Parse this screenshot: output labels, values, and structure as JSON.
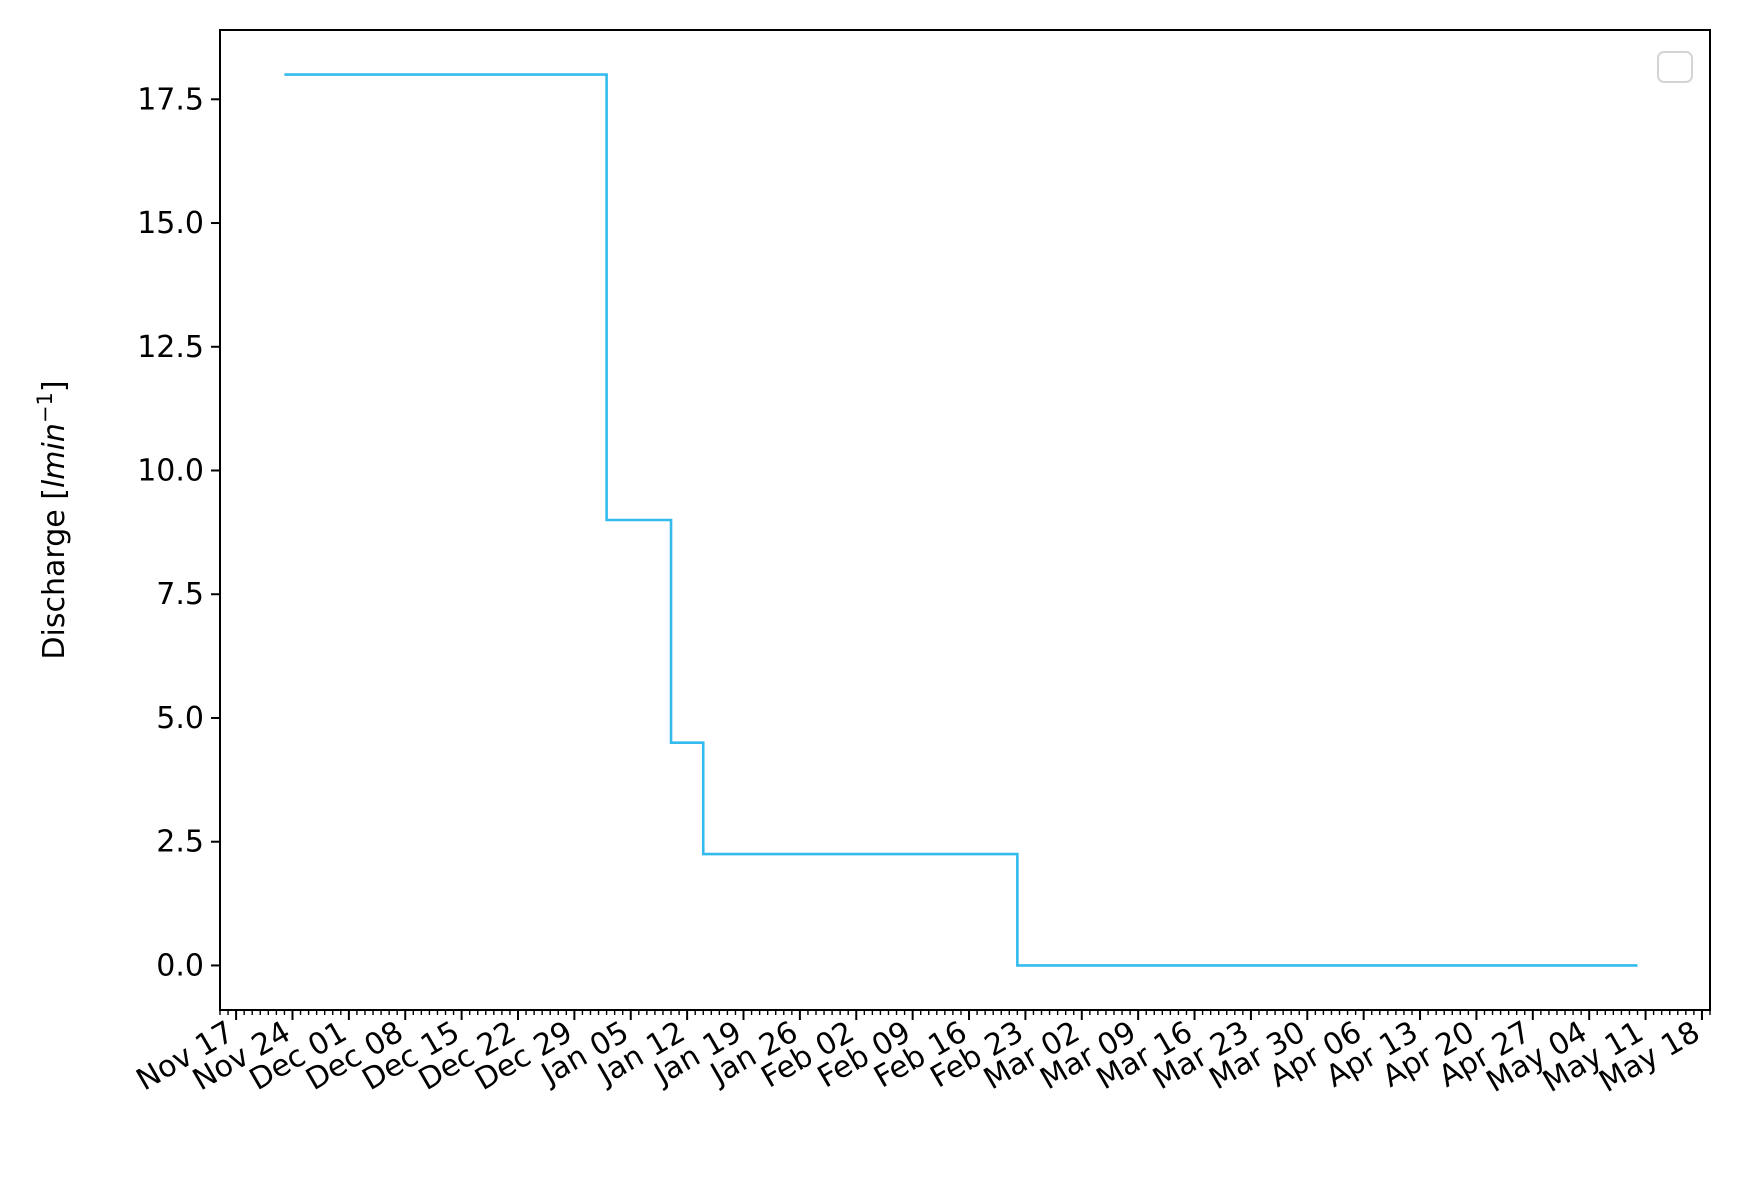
{
  "chart_data": {
    "type": "line",
    "step": "post",
    "title": "",
    "xlabel": "",
    "ylabel": "Discharge [",
    "ylabel_unit_base": "lmin",
    "ylabel_unit_exp": "−1",
    "ylabel_close": "]",
    "x_scale": "date",
    "xlim": [
      "2022-11-15",
      "2023-05-19"
    ],
    "ylim": [
      -0.9,
      18.9
    ],
    "yticks": [
      0.0,
      2.5,
      5.0,
      7.5,
      10.0,
      12.5,
      15.0,
      17.5
    ],
    "ytick_labels": [
      "0.0",
      "2.5",
      "5.0",
      "7.5",
      "10.0",
      "12.5",
      "15.0",
      "17.5"
    ],
    "xticks": [
      "2022-11-17",
      "2022-11-24",
      "2022-12-01",
      "2022-12-08",
      "2022-12-15",
      "2022-12-22",
      "2022-12-29",
      "2023-01-05",
      "2023-01-12",
      "2023-01-19",
      "2023-01-26",
      "2023-02-02",
      "2023-02-09",
      "2023-02-16",
      "2023-02-23",
      "2023-03-02",
      "2023-03-09",
      "2023-03-16",
      "2023-03-23",
      "2023-03-30",
      "2023-04-06",
      "2023-04-13",
      "2023-04-20",
      "2023-04-27",
      "2023-05-04",
      "2023-05-11",
      "2023-05-18"
    ],
    "xtick_labels": [
      "Nov 17",
      "Nov 24",
      "Dec 01",
      "Dec 08",
      "Dec 15",
      "Dec 22",
      "Dec 29",
      "Jan 05",
      "Jan 12",
      "Jan 19",
      "Jan 26",
      "Feb 02",
      "Feb 09",
      "Feb 16",
      "Feb 23",
      "Mar 02",
      "Mar 09",
      "Mar 16",
      "Mar 23",
      "Mar 30",
      "Apr 06",
      "Apr 13",
      "Apr 20",
      "Apr 27",
      "May 04",
      "May 11",
      "May 18"
    ],
    "minor_ticks": "daily",
    "grid": false,
    "legend": {
      "placement": "top-right",
      "entries": []
    },
    "series": [
      {
        "color": "#33bbee",
        "x": [
          "2022-11-23",
          "2023-01-02",
          "2023-01-10",
          "2023-01-14",
          "2023-02-22",
          "2023-05-10"
        ],
        "y": [
          18.0,
          9.0,
          4.5,
          2.25,
          0.0,
          0.0
        ]
      }
    ]
  }
}
